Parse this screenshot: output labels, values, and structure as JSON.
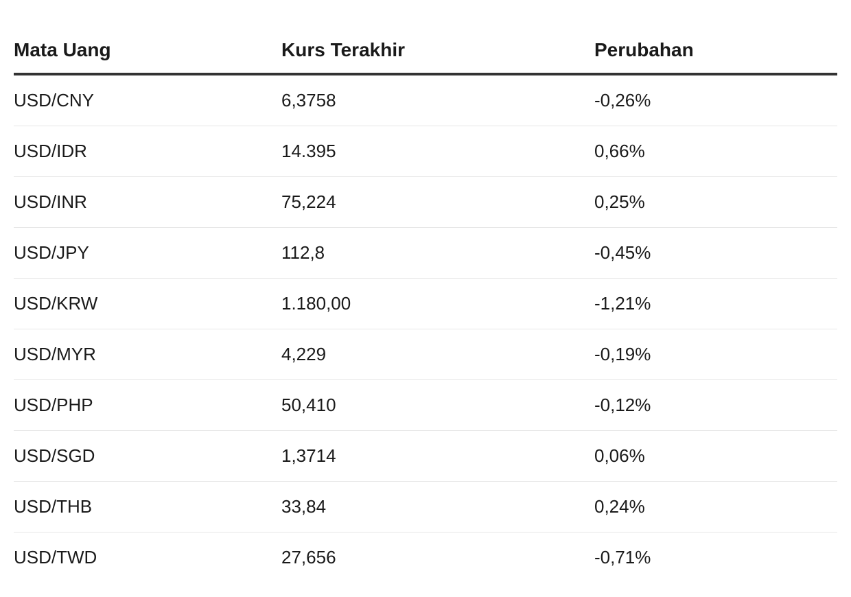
{
  "table": {
    "headers": [
      "Mata Uang",
      "Kurs Terakhir",
      "Perubahan"
    ],
    "rows": [
      [
        "USD/CNY",
        "6,3758",
        "-0,26%"
      ],
      [
        "USD/IDR",
        "14.395",
        "0,66%"
      ],
      [
        "USD/INR",
        "75,224",
        "0,25%"
      ],
      [
        "USD/JPY",
        "112,8",
        "-0,45%"
      ],
      [
        "USD/KRW",
        "1.180,00",
        "-1,21%"
      ],
      [
        "USD/MYR",
        "4,229",
        "-0,19%"
      ],
      [
        "USD/PHP",
        "50,410",
        "-0,12%"
      ],
      [
        "USD/SGD",
        "1,3714",
        "0,06%"
      ],
      [
        "USD/THB",
        "33,84",
        "0,24%"
      ],
      [
        "USD/TWD",
        "27,656",
        "-0,71%"
      ]
    ]
  }
}
